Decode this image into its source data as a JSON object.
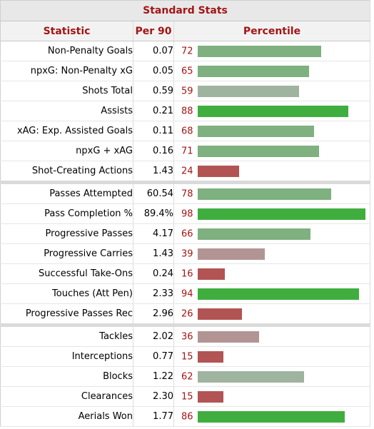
{
  "table": {
    "title": "Standard Stats",
    "columns": [
      "Statistic",
      "Per 90",
      "Percentile"
    ],
    "colors": {
      "high": "#3fae3f",
      "mid_high": "#7fb07f",
      "mid": "#9fb49f",
      "mid_low": "#b39494",
      "low": "#b25454"
    },
    "groups": [
      {
        "rows": [
          {
            "stat": "Non-Penalty Goals",
            "per90": "0.07",
            "percentile": 72
          },
          {
            "stat": "npxG: Non-Penalty xG",
            "per90": "0.05",
            "percentile": 65
          },
          {
            "stat": "Shots Total",
            "per90": "0.59",
            "percentile": 59
          },
          {
            "stat": "Assists",
            "per90": "0.21",
            "percentile": 88
          },
          {
            "stat": "xAG: Exp. Assisted Goals",
            "per90": "0.11",
            "percentile": 68
          },
          {
            "stat": "npxG + xAG",
            "per90": "0.16",
            "percentile": 71
          },
          {
            "stat": "Shot-Creating Actions",
            "per90": "1.43",
            "percentile": 24
          }
        ]
      },
      {
        "rows": [
          {
            "stat": "Passes Attempted",
            "per90": "60.54",
            "percentile": 78
          },
          {
            "stat": "Pass Completion %",
            "per90": "89.4%",
            "percentile": 98
          },
          {
            "stat": "Progressive Passes",
            "per90": "4.17",
            "percentile": 66
          },
          {
            "stat": "Progressive Carries",
            "per90": "1.43",
            "percentile": 39
          },
          {
            "stat": "Successful Take-Ons",
            "per90": "0.24",
            "percentile": 16
          },
          {
            "stat": "Touches (Att Pen)",
            "per90": "2.33",
            "percentile": 94
          },
          {
            "stat": "Progressive Passes Rec",
            "per90": "2.96",
            "percentile": 26
          }
        ]
      },
      {
        "rows": [
          {
            "stat": "Tackles",
            "per90": "2.02",
            "percentile": 36
          },
          {
            "stat": "Interceptions",
            "per90": "0.77",
            "percentile": 15
          },
          {
            "stat": "Blocks",
            "per90": "1.22",
            "percentile": 62
          },
          {
            "stat": "Clearances",
            "per90": "2.30",
            "percentile": 15
          },
          {
            "stat": "Aerials Won",
            "per90": "1.77",
            "percentile": 86
          }
        ]
      }
    ]
  }
}
